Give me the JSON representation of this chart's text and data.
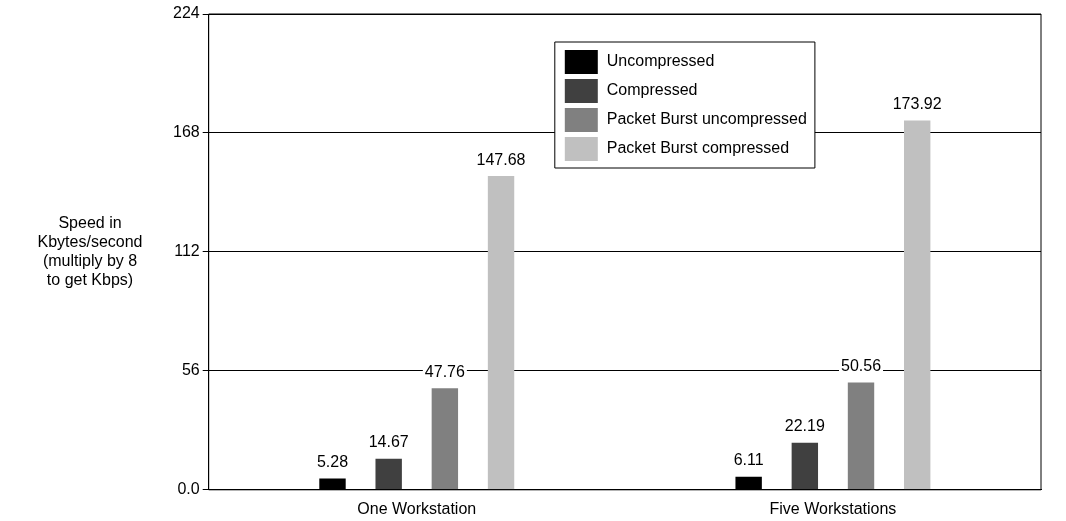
{
  "chart_data": {
    "type": "bar",
    "ylabel": "Speed in\nKbytes/second\n(multiply by 8\nto get Kbps)",
    "categories": [
      "One Workstation",
      "Five Workstations"
    ],
    "series": [
      {
        "name": "Uncompressed",
        "color": "#000000",
        "values": [
          5.28,
          6.11
        ]
      },
      {
        "name": "Compressed",
        "color": "#404040",
        "values": [
          14.67,
          22.19
        ]
      },
      {
        "name": "Packet Burst uncompressed",
        "color": "#808080",
        "values": [
          47.76,
          50.56
        ]
      },
      {
        "name": "Packet Burst compressed",
        "color": "#c0c0c0",
        "values": [
          147.68,
          173.92
        ]
      }
    ],
    "ylim": [
      0,
      224
    ],
    "yticks": [
      {
        "value": 0,
        "label": "0.0"
      },
      56,
      112,
      168,
      224
    ],
    "grid": "y",
    "legend": "top",
    "data_labels": true
  }
}
